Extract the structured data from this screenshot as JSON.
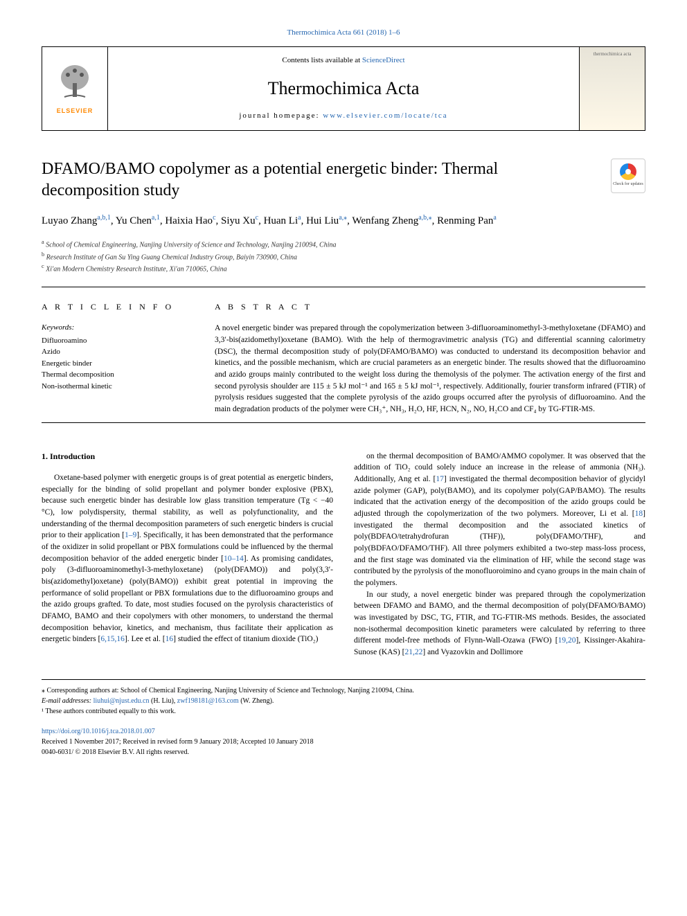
{
  "header": {
    "citation_link": "Thermochimica Acta 661 (2018) 1–6",
    "contents_prefix": "Contents lists available at ",
    "contents_link": "ScienceDirect",
    "journal_title": "Thermochimica Acta",
    "homepage_label": "journal homepage: ",
    "homepage_url": "www.elsevier.com/locate/tca",
    "publisher": "ELSEVIER",
    "cover_label": "thermochimica acta",
    "check_updates": "Check for updates"
  },
  "article": {
    "title": "DFAMO/BAMO copolymer as a potential energetic binder: Thermal decomposition study",
    "authors_html": "Luyao Zhang<sup><a>a</a>,<a>b</a>,<a>1</a></sup>, Yu Chen<sup><a>a</a>,<a>1</a></sup>, Haixia Hao<sup><a>c</a></sup>, Siyu Xu<sup><a>c</a></sup>, Huan Li<sup><a>a</a></sup>, Hui Liu<sup><a>a</a>,<a>⁎</a></sup>, Wenfang Zheng<sup><a>a</a>,<a>b</a>,<a>⁎</a></sup>, Renming Pan<sup><a>a</a></sup>",
    "affiliations": [
      {
        "key": "a",
        "text": "School of Chemical Engineering, Nanjing University of Science and Technology, Nanjing 210094, China"
      },
      {
        "key": "b",
        "text": "Research Institute of Gan Su Ying Guang Chemical Industry Group, Baiyin 730900, China"
      },
      {
        "key": "c",
        "text": "Xi'an Modern Chemistry Research Institute, Xi'an 710065, China"
      }
    ]
  },
  "info": {
    "header": "A R T I C L E  I N F O",
    "keywords_label": "Keywords:",
    "keywords": [
      "Difluoroamino",
      "Azido",
      "Energetic binder",
      "Thermal decomposition",
      "Non-isothermal kinetic"
    ]
  },
  "abstract": {
    "header": "A B S T R A C T",
    "text": "A novel energetic binder was prepared through the copolymerization between 3-difluoroaminomethyl-3-methyloxetane (DFAMO) and 3,3′-bis(azidomethyl)oxetane (BAMO). With the help of thermogravimetric analysis (TG) and differential scanning calorimetry (DSC), the thermal decomposition study of poly(DFAMO/BAMO) was conducted to understand its decomposition behavior and kinetics, and the possible mechanism, which are crucial parameters as an energetic binder. The results showed that the difluoroamino and azido groups mainly contributed to the weight loss during the themolysis of the polymer. The activation energy of the first and second pyrolysis shoulder are 115 ± 5 kJ mol⁻¹ and 165 ± 5 kJ mol⁻¹, respectively. Additionally, fourier transform infrared (FTIR) of pyrolysis residues suggested that the complete pyrolysis of the azido groups occurred after the pyrolysis of difluoroamino. And the main degradation products of the polymer were CH₃⁺, NH₃, H₂O, HF, HCN, N₂, NO, H₂CO and CF₄ by TG-FTIR-MS."
  },
  "body": {
    "intro_heading": "1. Introduction",
    "left_paragraphs": [
      "Oxetane-based polymer with energetic groups is of great potential as energetic binders, especially for the binding of solid propellant and polymer bonder explosive (PBX), because such energetic binder has desirable low glass transition temperature (Tg < −40 °C), low polydispersity, thermal stability, as well as polyfunctionality, and the understanding of the thermal decomposition parameters of such energetic binders is crucial prior to their application [1–9]. Specifically, it has been demonstrated that the performance of the oxidizer in solid propellant or PBX formulations could be influenced by the thermal decomposition behavior of the added energetic binder [10–14]. As promising candidates, poly (3-difluoroaminomethyl-3-methyloxetane) (poly(DFAMO)) and poly(3,3′-bis(azidomethyl)oxetane) (poly(BAMO)) exhibit great potential in improving the performance of solid propellant or PBX formulations due to the difluoroamino groups and the azido groups grafted. To date, most studies focused on the pyrolysis characteristics of DFAMO, BAMO and their copolymers with other monomers, to understand the thermal decomposition behavior, kinetics, and mechanism, thus facilitate their application as energetic binders [6,15,16]. Lee et al. [16] studied the effect of titanium dioxide (TiO₂)"
    ],
    "right_paragraphs": [
      "on the thermal decomposition of BAMO/AMMO copolymer. It was observed that the addition of TiO₂ could solely induce an increase in the release of ammonia (NH₃). Additionally, Ang et al. [17] investigated the thermal decomposition behavior of glycidyl azide polymer (GAP), poly(BAMO), and its copolymer poly(GAP/BAMO). The results indicated that the activation energy of the decomposition of the azido groups could be adjusted through the copolymerization of the two polymers. Moreover, Li et al. [18] investigated the thermal decomposition and the associated kinetics of poly(BDFAO/tetrahydrofuran (THF)), poly(DFAMO/THF), and poly(BDFAO/DFAMO/THF). All three polymers exhibited a two-step mass-loss process, and the first stage was dominated via the elimination of HF, while the second stage was contributed by the pyrolysis of the monofluoroimino and cyano groups in the main chain of the polymers.",
      "In our study, a novel energetic binder was prepared through the copolymerization between DFAMO and BAMO, and the thermal decomposition of poly(DFAMO/BAMO) was investigated by DSC, TG, FTIR, and TG-FTIR-MS methods. Besides, the associated non-isothermal decomposition kinetic parameters were calculated by referring to three different model-free methods of Flynn-Wall-Ozawa (FWO) [19,20], Kissinger-Akahira-Sunose (KAS) [21,22] and Vyazovkin and Dollimore"
    ],
    "ref_links": {
      "r1": "1–9",
      "r2": "10–14",
      "r3": "6",
      "r4": "15",
      "r5": "16",
      "r6": "16",
      "r7": "17",
      "r8": "18",
      "r9": "19",
      "r10": "20",
      "r11": "21",
      "r12": "22"
    }
  },
  "footnotes": {
    "corr": "⁎ Corresponding authors at: School of Chemical Engineering, Nanjing University of Science and Technology, Nanjing 210094, China.",
    "email_label": "E-mail addresses: ",
    "email1": "liuhui@njust.edu.cn",
    "email1_name": " (H. Liu), ",
    "email2": "zwf198181@163.com",
    "email2_name": " (W. Zheng).",
    "equal": "¹ These authors contributed equally to this work."
  },
  "doi": {
    "url": "https://doi.org/10.1016/j.tca.2018.01.007",
    "received": "Received 1 November 2017; Received in revised form 9 January 2018; Accepted 10 January 2018",
    "copyright": "0040-6031/ © 2018 Elsevier B.V. All rights reserved."
  },
  "colors": {
    "link": "#2566b0",
    "elsevier_orange": "#ff8800",
    "text": "#000000",
    "bg": "#ffffff"
  }
}
